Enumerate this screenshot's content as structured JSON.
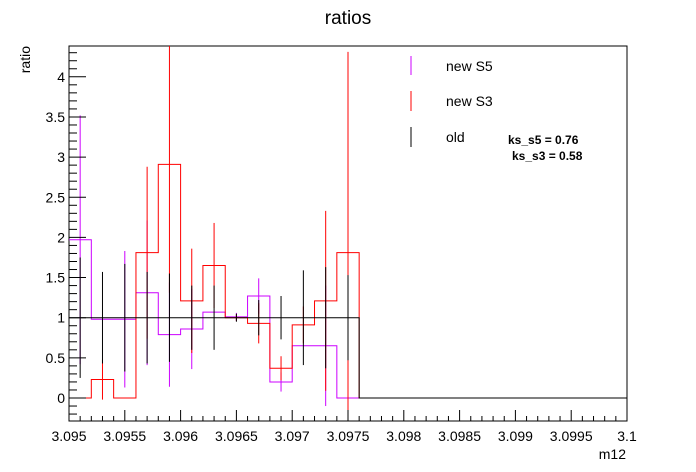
{
  "chart_data": {
    "type": "line",
    "title": "ratios",
    "xlabel": "m12",
    "ylabel": "ratio",
    "xlim": [
      3.095,
      3.1
    ],
    "ylim": [
      -0.3,
      4.4
    ],
    "x_ticks": [
      "3.095",
      "3.0955",
      "3.096",
      "3.0965",
      "3.097",
      "3.0975",
      "3.098",
      "3.0985",
      "3.099",
      "3.0995",
      "3.1"
    ],
    "y_ticks": [
      "0",
      "0.5",
      "1",
      "1.5",
      "2",
      "2.5",
      "3",
      "3.5",
      "4"
    ],
    "bin_edges": [
      3.095,
      3.0952,
      3.0954,
      3.0956,
      3.0958,
      3.096,
      3.0962,
      3.0964,
      3.0966,
      3.0968,
      3.097,
      3.0972,
      3.0974,
      3.0976,
      3.0978,
      3.098,
      3.0982,
      3.0984,
      3.0986,
      3.0988,
      3.099,
      3.0992,
      3.0994,
      3.0996,
      3.0998,
      3.1
    ],
    "series": [
      {
        "name": "new S5",
        "color": "#cc00ff",
        "values": [
          1.97,
          0.98,
          0.98,
          1.31,
          0.79,
          0.86,
          1.07,
          1.01,
          1.27,
          0.2,
          0.65,
          0.65,
          0.0,
          0,
          0,
          0,
          0,
          0,
          0,
          0,
          0,
          0,
          0,
          0,
          0
        ],
        "errors": [
          1.55,
          0,
          0.85,
          0.9,
          0.65,
          0.5,
          0,
          0.05,
          0.22,
          0.12,
          0,
          0.75,
          0,
          0,
          0,
          0,
          0,
          0,
          0,
          0,
          0,
          0,
          0,
          0,
          0
        ]
      },
      {
        "name": "new S3",
        "color": "#ff0000",
        "values": [
          0,
          0.23,
          0,
          1.81,
          2.91,
          1.21,
          1.65,
          1.0,
          0.93,
          0.37,
          0.91,
          1.21,
          1.81,
          0,
          0,
          0,
          0,
          0,
          0,
          0,
          0,
          0,
          0,
          0,
          0
        ],
        "errors": [
          0,
          0.25,
          0,
          1.07,
          1.6,
          0.65,
          0.53,
          0.04,
          0.25,
          0.15,
          0.23,
          1.12,
          2.5,
          0,
          0,
          0,
          0,
          0,
          0,
          0,
          0,
          0,
          0,
          0,
          0
        ]
      },
      {
        "name": "old",
        "color": "#000000",
        "values": [
          1,
          1,
          1,
          1,
          1,
          1,
          1,
          1,
          1,
          1,
          1,
          1,
          1,
          0,
          0,
          0,
          0,
          0,
          0,
          0,
          0,
          0,
          0,
          0,
          0
        ],
        "errors": [
          0.75,
          0.57,
          0.67,
          0.57,
          0.55,
          0.4,
          0.4,
          0.05,
          0.22,
          0.27,
          0.59,
          0.63,
          0.53,
          0,
          0,
          0,
          0,
          0,
          0,
          0,
          0,
          0,
          0,
          0,
          0
        ]
      }
    ],
    "annotations": [
      "ks_s5 = 0.76",
      "ks_s3 = 0.58"
    ],
    "legend_position": "top-right",
    "grid": false
  }
}
